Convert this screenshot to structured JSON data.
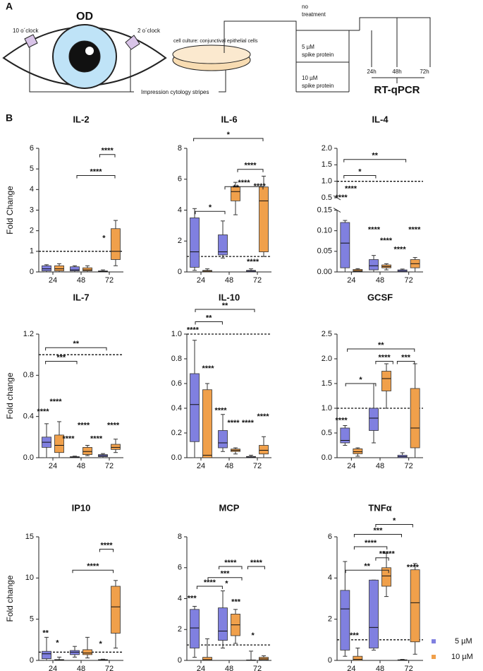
{
  "panel_a": {
    "label": "A",
    "eye": "OD",
    "left_clock": "10 o´clock",
    "right_clock": "2 o´clock",
    "culture": "cell culture: conjunctival epithelial cells",
    "stripes": "Impression cytology stripes",
    "no_treatment": [
      "no",
      "treatment"
    ],
    "dose_5": [
      "5 µM",
      "spike protein"
    ],
    "dose_10": [
      "10 µM",
      "spike protein"
    ],
    "times": [
      "24h",
      "48h",
      "72h"
    ],
    "assay": "RT-qPCR"
  },
  "panel_b": {
    "label": "B"
  },
  "chart_data": [
    {
      "type": "box",
      "title": "IL-2",
      "y_label": "Fold Change",
      "categories": [
        "24",
        "48",
        "72"
      ],
      "ylim": [
        0,
        6
      ],
      "yticks": [
        0,
        1,
        2,
        3,
        4,
        5,
        6
      ],
      "refline": 1,
      "series": [
        {
          "name": "5 µM",
          "color": "#8080e0",
          "boxes": [
            {
              "min": 0,
              "q1": 0.05,
              "median": 0.15,
              "q3": 0.3,
              "max": 0.35
            },
            {
              "min": 0,
              "q1": 0.05,
              "median": 0.1,
              "q3": 0.25,
              "max": 0.3
            },
            {
              "min": 0,
              "q1": 0,
              "median": 0.02,
              "q3": 0.05,
              "max": 0.1
            }
          ]
        },
        {
          "name": "10 µM",
          "color": "#f0a04b",
          "boxes": [
            {
              "min": 0,
              "q1": 0.05,
              "median": 0.15,
              "q3": 0.3,
              "max": 0.4
            },
            {
              "min": 0,
              "q1": 0.05,
              "median": 0.1,
              "q3": 0.2,
              "max": 0.3
            },
            {
              "min": 0.3,
              "q1": 0.6,
              "median": 1.0,
              "q3": 2.1,
              "max": 2.5
            }
          ]
        }
      ],
      "annotations": [
        "****",
        "****",
        "*"
      ]
    },
    {
      "type": "box",
      "title": "IL-6",
      "categories": [
        "24",
        "48",
        "72"
      ],
      "ylim": [
        0,
        8
      ],
      "yticks": [
        0,
        2,
        4,
        6,
        8
      ],
      "refline": 1,
      "series": [
        {
          "name": "5 µM",
          "color": "#8080e0",
          "boxes": [
            {
              "min": 0.1,
              "q1": 0.3,
              "median": 1.3,
              "q3": 3.5,
              "max": 4.1
            },
            {
              "min": 0.9,
              "q1": 1.1,
              "median": 1.3,
              "q3": 2.4,
              "max": 3.3
            },
            {
              "min": 0,
              "q1": 0,
              "median": 0.05,
              "q3": 0.1,
              "max": 0.2
            }
          ]
        },
        {
          "name": "10 µM",
          "color": "#f0a04b",
          "boxes": [
            {
              "min": 0,
              "q1": 0,
              "median": 0.05,
              "q3": 0.1,
              "max": 0.2
            },
            {
              "min": 3.7,
              "q1": 4.6,
              "median": 5.2,
              "q3": 5.5,
              "max": 5.8
            },
            {
              "min": 1.0,
              "q1": 1.3,
              "median": 4.6,
              "q3": 5.5,
              "max": 6.2
            }
          ]
        }
      ],
      "annotations": [
        "*",
        "****",
        "****",
        "*",
        "**",
        "****",
        "****"
      ]
    },
    {
      "type": "box",
      "title": "IL-4",
      "categories": [
        "24",
        "48",
        "72"
      ],
      "ylim": [
        0,
        2
      ],
      "axis_break": [
        0.15,
        0.5
      ],
      "yticks": [
        {
          "value": 0,
          "label": "0.00"
        },
        0.05,
        {
          "value": 0.1,
          "label": "0.10"
        },
        0.15,
        0.5,
        {
          "value": 1,
          "label": "1.0"
        },
        1.5,
        {
          "value": 2,
          "label": "2.0"
        }
      ],
      "refline": 1,
      "series": [
        {
          "name": "5 µM",
          "color": "#8080e0",
          "boxes": [
            {
              "min": 0,
              "q1": 0.01,
              "median": 0.07,
              "q3": 0.12,
              "max": 0.125
            },
            {
              "min": 0,
              "q1": 0.005,
              "median": 0.015,
              "q3": 0.03,
              "max": 0.04
            },
            {
              "min": 0,
              "q1": 0,
              "median": 0.002,
              "q3": 0.005,
              "max": 0.007
            }
          ]
        },
        {
          "name": "10 µM",
          "color": "#f0a04b",
          "boxes": [
            {
              "min": 0,
              "q1": 0.001,
              "median": 0.003,
              "q3": 0.006,
              "max": 0.008
            },
            {
              "min": 0.005,
              "q1": 0.01,
              "median": 0.013,
              "q3": 0.017,
              "max": 0.02
            },
            {
              "min": 0,
              "q1": 0.01,
              "median": 0.02,
              "q3": 0.03,
              "max": 0.035
            }
          ]
        }
      ],
      "annotations": [
        "**",
        "*",
        "****",
        "****",
        "****",
        "****",
        "****",
        "****"
      ]
    },
    {
      "type": "box",
      "title": "IL-7",
      "y_label": "Fold change",
      "categories": [
        "24",
        "48",
        "72"
      ],
      "ylim": [
        0,
        1.2
      ],
      "yticks": [
        {
          "value": 0,
          "label": "0.0"
        },
        0.4,
        0.8,
        1.2
      ],
      "refline": 1,
      "series": [
        {
          "name": "5 µM",
          "color": "#8080e0",
          "boxes": [
            {
              "min": 0,
              "q1": 0.1,
              "median": 0.15,
              "q3": 0.2,
              "max": 0.33
            },
            {
              "min": 0,
              "q1": 0,
              "median": 0.005,
              "q3": 0.01,
              "max": 0.015
            },
            {
              "min": 0,
              "q1": 0.01,
              "median": 0.02,
              "q3": 0.03,
              "max": 0.04
            }
          ]
        },
        {
          "name": "10 µM",
          "color": "#f0a04b",
          "boxes": [
            {
              "min": 0,
              "q1": 0.05,
              "median": 0.12,
              "q3": 0.22,
              "max": 0.35
            },
            {
              "min": 0.02,
              "q1": 0.03,
              "median": 0.06,
              "q3": 0.1,
              "max": 0.12
            },
            {
              "min": 0.05,
              "q1": 0.08,
              "median": 0.1,
              "q3": 0.13,
              "max": 0.18
            }
          ]
        }
      ],
      "annotations": [
        "**",
        "***",
        "****",
        "****",
        "****",
        "****",
        "****",
        "****"
      ]
    },
    {
      "type": "box",
      "title": "IL-10",
      "categories": [
        "24",
        "48",
        "72"
      ],
      "ylim": [
        0,
        1
      ],
      "yticks": [
        {
          "value": 0,
          "label": "0.0"
        },
        0.2,
        0.4,
        0.6,
        0.8,
        {
          "value": 1,
          "label": "1.0"
        }
      ],
      "refline": 1,
      "series": [
        {
          "name": "5 µM",
          "color": "#8080e0",
          "boxes": [
            {
              "min": 0,
              "q1": 0.13,
              "median": 0.43,
              "q3": 0.68,
              "max": 0.95
            },
            {
              "min": 0.05,
              "q1": 0.08,
              "median": 0.12,
              "q3": 0.22,
              "max": 0.35
            },
            {
              "min": 0,
              "q1": 0,
              "median": 0.005,
              "q3": 0.01,
              "max": 0.02
            }
          ]
        },
        {
          "name": "10 µM",
          "color": "#f0a04b",
          "boxes": [
            {
              "min": 0,
              "q1": 0,
              "median": 0.02,
              "q3": 0.55,
              "max": 0.6
            },
            {
              "min": 0.03,
              "q1": 0.05,
              "median": 0.06,
              "q3": 0.07,
              "max": 0.08
            },
            {
              "min": 0,
              "q1": 0.03,
              "median": 0.06,
              "q3": 0.1,
              "max": 0.17
            }
          ]
        }
      ],
      "annotations": [
        "**",
        "**",
        "****",
        "****",
        "****",
        "****",
        "****",
        "****"
      ]
    },
    {
      "type": "box",
      "title": "GCSF",
      "categories": [
        "24",
        "48",
        "72"
      ],
      "ylim": [
        0,
        2.5
      ],
      "yticks": [
        {
          "value": 0,
          "label": "0.0"
        },
        0.5,
        {
          "value": 1,
          "label": "1.0"
        },
        1.5,
        {
          "value": 2,
          "label": "2.0"
        },
        2.5
      ],
      "refline": 1,
      "series": [
        {
          "name": "5 µM",
          "color": "#8080e0",
          "boxes": [
            {
              "min": 0.25,
              "q1": 0.3,
              "median": 0.35,
              "q3": 0.6,
              "max": 0.65
            },
            {
              "min": 0.3,
              "q1": 0.55,
              "median": 0.8,
              "q3": 1.0,
              "max": 1.5
            },
            {
              "min": 0,
              "q1": 0,
              "median": 0.02,
              "q3": 0.05,
              "max": 0.1
            }
          ]
        },
        {
          "name": "10 µM",
          "color": "#f0a04b",
          "boxes": [
            {
              "min": 0.03,
              "q1": 0.08,
              "median": 0.12,
              "q3": 0.18,
              "max": 0.2
            },
            {
              "min": 1.0,
              "q1": 1.35,
              "median": 1.6,
              "q3": 1.75,
              "max": 1.9
            },
            {
              "min": 0,
              "q1": 0.2,
              "median": 0.6,
              "q3": 1.4,
              "max": 1.9
            }
          ]
        }
      ],
      "annotations": [
        "**",
        "****",
        "***",
        "*",
        "****"
      ]
    },
    {
      "type": "box",
      "title": "IP10",
      "y_label": "Fold change",
      "categories": [
        "24",
        "48",
        "72"
      ],
      "ylim": [
        0,
        15
      ],
      "yticks": [
        0,
        5,
        10,
        15
      ],
      "refline": 1,
      "series": [
        {
          "name": "5 µM",
          "color": "#8080e0",
          "boxes": [
            {
              "min": 0,
              "q1": 0.2,
              "median": 0.8,
              "q3": 1.1,
              "max": 2.8
            },
            {
              "min": 0.4,
              "q1": 0.7,
              "median": 1.0,
              "q3": 1.2,
              "max": 1.7
            },
            {
              "min": 0,
              "q1": 0,
              "median": 0.05,
              "q3": 0.1,
              "max": 0.15
            }
          ]
        },
        {
          "name": "10 µM",
          "color": "#f0a04b",
          "boxes": [
            {
              "min": 0,
              "q1": 0,
              "median": 0.05,
              "q3": 0.1,
              "max": 0.4
            },
            {
              "min": 0.3,
              "q1": 0.7,
              "median": 0.9,
              "q3": 1.3,
              "max": 2.8
            },
            {
              "min": 1.5,
              "q1": 3.3,
              "median": 6.5,
              "q3": 9,
              "max": 9.7
            }
          ]
        }
      ],
      "annotations": [
        "****",
        "****",
        "**",
        "*",
        "*"
      ]
    },
    {
      "type": "box",
      "title": "MCP",
      "categories": [
        "24",
        "48",
        "72"
      ],
      "ylim": [
        0,
        8
      ],
      "yticks": [
        0,
        2,
        4,
        6,
        8
      ],
      "refline": 1,
      "series": [
        {
          "name": "5 µM",
          "color": "#8080e0",
          "boxes": [
            {
              "min": 0.2,
              "q1": 0.8,
              "median": 2.1,
              "q3": 3.3,
              "max": 3.5
            },
            {
              "min": 0.8,
              "q1": 1.3,
              "median": 1.9,
              "q3": 3.4,
              "max": 4.5
            },
            {
              "min": 0,
              "q1": 0,
              "median": 0.01,
              "q3": 0.03,
              "max": 0.6
            }
          ]
        },
        {
          "name": "10 µM",
          "color": "#f0a04b",
          "boxes": [
            {
              "min": 0,
              "q1": 0,
              "median": 0.05,
              "q3": 0.2,
              "max": 1.4
            },
            {
              "min": 1.1,
              "q1": 1.6,
              "median": 2.3,
              "q3": 3.0,
              "max": 3.3
            },
            {
              "min": 0,
              "q1": 0.03,
              "median": 0.1,
              "q3": 0.2,
              "max": 0.3
            }
          ]
        }
      ],
      "annotations": [
        "****",
        "***",
        "****",
        "****",
        "***",
        "*",
        "***",
        "*"
      ]
    },
    {
      "type": "box",
      "title": "TNFα",
      "categories": [
        "24",
        "48",
        "72"
      ],
      "ylim": [
        0,
        6
      ],
      "yticks": [
        0,
        2,
        4,
        6
      ],
      "refline": 1,
      "series": [
        {
          "name": "5 µM",
          "color": "#8080e0",
          "boxes": [
            {
              "min": 0.2,
              "q1": 0.5,
              "median": 2.5,
              "q3": 3.4,
              "max": 4.8
            },
            {
              "min": 0.5,
              "q1": 0.6,
              "median": 1.6,
              "q3": 3.9,
              "max": 3.9
            },
            {
              "min": 0,
              "q1": 0,
              "median": 0.01,
              "q3": 0.03,
              "max": 0.05
            }
          ]
        },
        {
          "name": "10 µM",
          "color": "#f0a04b",
          "boxes": [
            {
              "min": 0,
              "q1": 0,
              "median": 0.05,
              "q3": 0.2,
              "max": 0.6
            },
            {
              "min": 3.1,
              "q1": 3.6,
              "median": 4.1,
              "q3": 4.5,
              "max": 5.2
            },
            {
              "min": 0.3,
              "q1": 0.9,
              "median": 2.8,
              "q3": 4.4,
              "max": 4.7
            }
          ]
        }
      ],
      "annotations": [
        "*",
        "***",
        "****",
        "**",
        "**",
        "***",
        "****",
        "****"
      ]
    }
  ]
}
